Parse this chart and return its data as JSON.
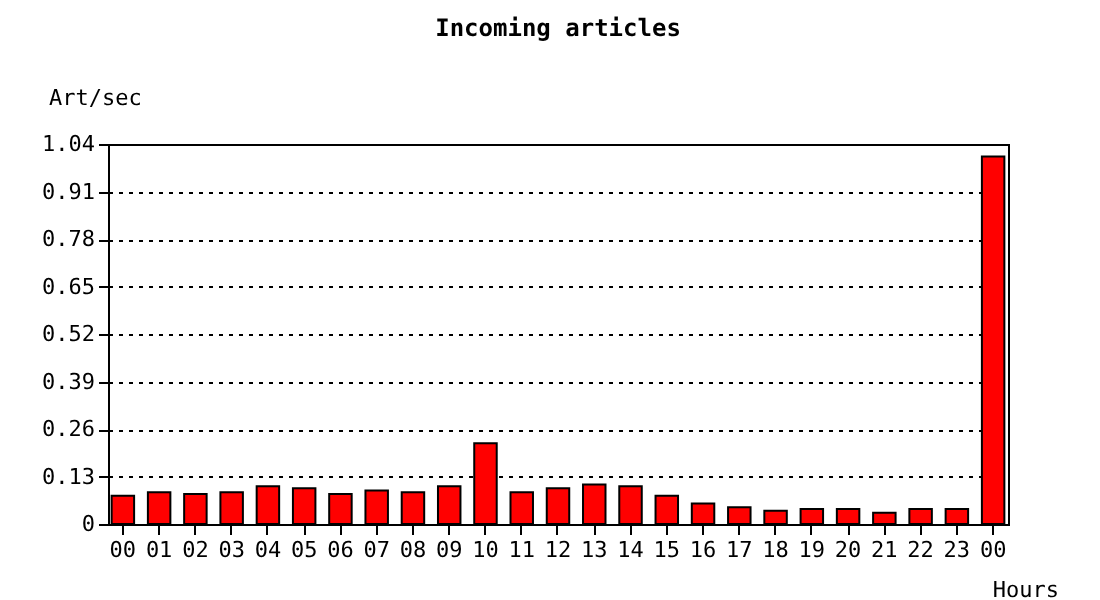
{
  "chart_data": {
    "type": "bar",
    "title": "Incoming articles",
    "xlabel": "Hours",
    "ylabel": "Art/sec",
    "categories": [
      "00",
      "01",
      "02",
      "03",
      "04",
      "05",
      "06",
      "07",
      "08",
      "09",
      "10",
      "11",
      "12",
      "13",
      "14",
      "15",
      "16",
      "17",
      "18",
      "19",
      "20",
      "21",
      "22",
      "23",
      "00"
    ],
    "values": [
      0.077,
      0.087,
      0.082,
      0.087,
      0.103,
      0.098,
      0.082,
      0.092,
      0.087,
      0.103,
      0.221,
      0.087,
      0.098,
      0.108,
      0.103,
      0.077,
      0.056,
      0.046,
      0.036,
      0.041,
      0.041,
      0.031,
      0.041,
      0.041,
      1.006
    ],
    "color": "#ff0000",
    "ylim": [
      0,
      1.04
    ],
    "yticks": [
      {
        "value": 0,
        "label": "0"
      },
      {
        "value": 0.13,
        "label": "0.13"
      },
      {
        "value": 0.26,
        "label": "0.26"
      },
      {
        "value": 0.39,
        "label": "0.39"
      },
      {
        "value": 0.52,
        "label": "0.52"
      },
      {
        "value": 0.65,
        "label": "0.65"
      },
      {
        "value": 0.78,
        "label": "0.78"
      },
      {
        "value": 0.91,
        "label": "0.91"
      },
      {
        "value": 1.04,
        "label": "1.04"
      }
    ],
    "grid": "y"
  }
}
